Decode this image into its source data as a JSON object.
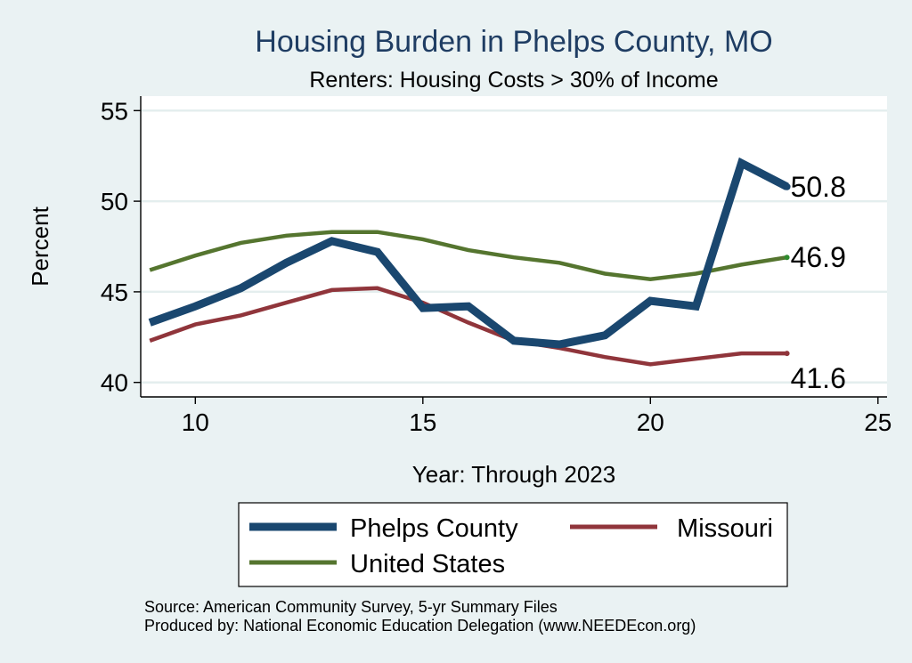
{
  "chart_data": {
    "type": "line",
    "title": "Housing Burden in Phelps County, MO",
    "subtitle": "Renters: Housing Costs > 30% of Income",
    "xlabel": "Year: Through 2023",
    "ylabel": "Percent",
    "xlim": [
      8.8,
      25.2
    ],
    "ylim": [
      39.2,
      55.8
    ],
    "xticks": [
      10,
      15,
      20,
      25
    ],
    "yticks": [
      40,
      45,
      50,
      55
    ],
    "grid": true,
    "x": [
      9,
      10,
      11,
      12,
      13,
      14,
      15,
      16,
      17,
      18,
      19,
      20,
      21,
      22,
      23
    ],
    "series": [
      {
        "name": "Phelps County",
        "color": "#1a476f",
        "end_label": "50.8",
        "values": [
          43.3,
          44.2,
          45.2,
          46.6,
          47.8,
          47.2,
          44.1,
          44.2,
          42.3,
          42.1,
          42.6,
          44.5,
          44.2,
          52.1,
          50.8
        ]
      },
      {
        "name": "Missouri",
        "color": "#90353b",
        "end_label": "41.6",
        "values": [
          42.3,
          43.2,
          43.7,
          44.4,
          45.1,
          45.2,
          44.4,
          43.3,
          42.3,
          41.9,
          41.4,
          41.0,
          41.3,
          41.6,
          41.6
        ]
      },
      {
        "name": "United States",
        "color": "#55752f",
        "end_label": "46.9",
        "values": [
          46.2,
          47.0,
          47.7,
          48.1,
          48.3,
          48.3,
          47.9,
          47.3,
          46.9,
          46.6,
          46.0,
          45.7,
          46.0,
          46.5,
          46.9
        ]
      }
    ],
    "legend_position": "bottom"
  },
  "notes": {
    "source": "Source: American Community Survey, 5-yr Summary Files",
    "produced": "Produced by: National Economic Education Delegation (www.NEEDEcon.org)"
  }
}
